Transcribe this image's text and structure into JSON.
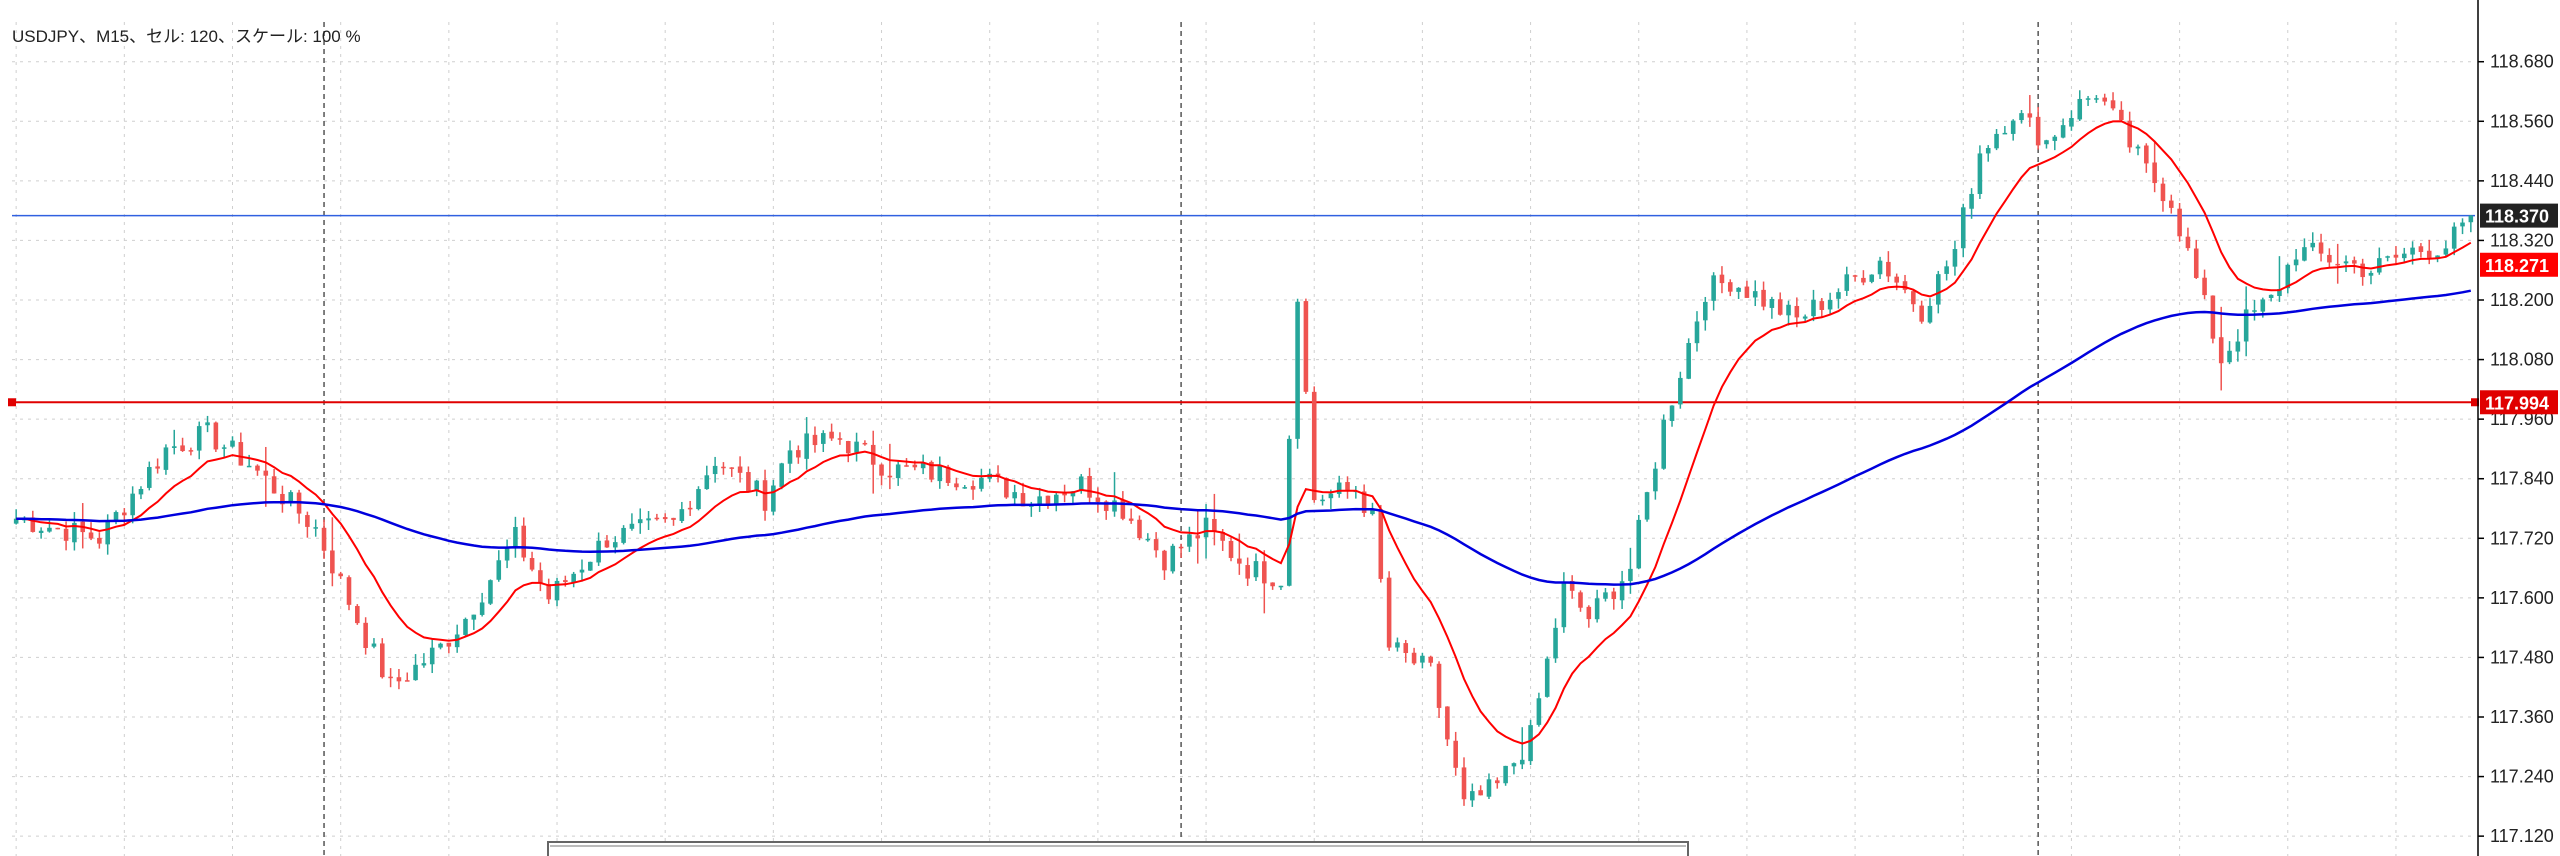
{
  "chart_data": {
    "type": "candlestick",
    "title": "USDJPY、M15、セル: 120、スケール: 100 %",
    "symbol": "USDJPY",
    "timeframe": "M15",
    "ylim": [
      117.08,
      118.76
    ],
    "grid": true,
    "y_ticks": [
      "118.680",
      "118.560",
      "118.440",
      "118.320",
      "118.200",
      "118.080",
      "117.960",
      "117.840",
      "117.720",
      "117.600",
      "117.480",
      "117.360",
      "117.240",
      "117.120"
    ],
    "price_lines": [
      {
        "name": "bid",
        "value": 118.37,
        "label": "118.370",
        "color": "#3060e0",
        "tag_color": "#222222"
      },
      {
        "name": "ma-cross",
        "value": 118.271,
        "label": "118.271",
        "color": null,
        "tag_color": "#ff0000"
      },
      {
        "name": "level",
        "value": 117.994,
        "label": "117.994",
        "color": "#e00000",
        "tag_color": "#e00000"
      }
    ],
    "colors": {
      "bull": "#26a69a",
      "bear": "#ef5350",
      "ma_fast": "#ff0000",
      "ma_slow": "#0000dd",
      "grid": "#cfcfcf",
      "session": "#555555"
    },
    "anchors": [
      [
        0,
        117.76
      ],
      [
        10,
        117.72
      ],
      [
        18,
        117.9
      ],
      [
        23,
        117.93
      ],
      [
        28,
        117.87
      ],
      [
        36,
        117.74
      ],
      [
        42,
        117.52
      ],
      [
        45,
        117.42
      ],
      [
        51,
        117.5
      ],
      [
        54,
        117.56
      ],
      [
        60,
        117.72
      ],
      [
        64,
        117.6
      ],
      [
        71,
        117.72
      ],
      [
        79,
        117.75
      ],
      [
        84,
        117.88
      ],
      [
        90,
        117.8
      ],
      [
        93,
        117.9
      ],
      [
        99,
        117.92
      ],
      [
        105,
        117.86
      ],
      [
        111,
        117.85
      ],
      [
        116,
        117.84
      ],
      [
        122,
        117.8
      ],
      [
        128,
        117.83
      ],
      [
        133,
        117.78
      ],
      [
        138,
        117.68
      ],
      [
        143,
        117.74
      ],
      [
        148,
        117.66
      ],
      [
        152,
        117.64
      ],
      [
        154,
        118.22
      ],
      [
        156,
        117.8
      ],
      [
        161,
        117.82
      ],
      [
        163,
        117.76
      ],
      [
        165,
        117.5
      ],
      [
        170,
        117.45
      ],
      [
        174,
        117.18
      ],
      [
        178,
        117.22
      ],
      [
        182,
        117.32
      ],
      [
        186,
        117.62
      ],
      [
        189,
        117.56
      ],
      [
        192,
        117.62
      ],
      [
        194,
        117.66
      ],
      [
        198,
        117.95
      ],
      [
        203,
        118.22
      ],
      [
        206,
        118.24
      ],
      [
        210,
        118.2
      ],
      [
        214,
        118.16
      ],
      [
        219,
        118.22
      ],
      [
        224,
        118.28
      ],
      [
        229,
        118.18
      ],
      [
        233,
        118.3
      ],
      [
        236,
        118.5
      ],
      [
        240,
        118.58
      ],
      [
        244,
        118.52
      ],
      [
        247,
        118.58
      ],
      [
        250,
        118.62
      ],
      [
        253,
        118.54
      ],
      [
        256,
        118.46
      ],
      [
        259,
        118.4
      ],
      [
        262,
        118.24
      ],
      [
        265,
        118.08
      ],
      [
        268,
        118.16
      ],
      [
        271,
        118.2
      ],
      [
        274,
        118.3
      ],
      [
        279,
        118.28
      ],
      [
        283,
        118.26
      ],
      [
        288,
        118.3
      ],
      [
        292,
        118.31
      ],
      [
        295,
        118.36
      ]
    ],
    "count": 296,
    "ma_fast_period": 12,
    "ma_slow_period": 100,
    "session_separators": [
      37,
      140,
      243
    ]
  }
}
